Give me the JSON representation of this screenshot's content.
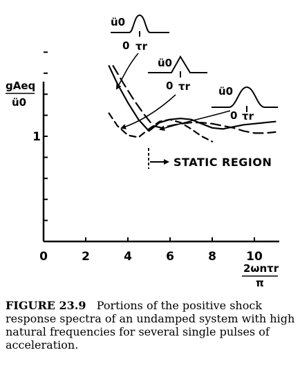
{
  "chart_data": {
    "type": "line",
    "ylabel_num": "gAeq",
    "ylabel_den": "ü0",
    "xlabel_num": "2ωnτr",
    "xlabel_den": "π",
    "xlim": [
      0,
      11
    ],
    "ylim": [
      0,
      1.9
    ],
    "xticks": [
      0,
      2,
      4,
      6,
      8,
      10
    ],
    "ytick_labels": [
      {
        "value": 1,
        "label": "1"
      }
    ],
    "series": [
      {
        "style": "solid",
        "x": [
          3.1,
          3.5,
          4.0,
          4.5,
          5.0,
          5.5,
          6.0,
          6.5,
          7.0,
          7.5,
          8.0,
          8.5,
          9.0,
          9.5,
          10.0,
          10.5,
          11.0
        ],
        "y": [
          1.67,
          1.5,
          1.32,
          1.16,
          1.05,
          1.13,
          1.16,
          1.17,
          1.16,
          1.12,
          1.08,
          1.07,
          1.09,
          1.11,
          1.12,
          1.13,
          1.14
        ]
      },
      {
        "style": "longdash",
        "x": [
          3.3,
          3.8,
          4.3,
          4.8,
          5.2,
          5.6,
          6.0,
          6.5,
          7.0,
          7.5,
          8.0,
          8.5,
          9.0,
          9.5,
          10.0,
          10.5,
          11.0
        ],
        "y": [
          1.67,
          1.5,
          1.34,
          1.2,
          1.1,
          1.08,
          1.1,
          1.12,
          1.13,
          1.13,
          1.12,
          1.1,
          1.08,
          1.05,
          1.03,
          1.03,
          1.04
        ]
      },
      {
        "style": "dash",
        "x": [
          3.1,
          3.5,
          4.0,
          4.5,
          5.0,
          5.5,
          6.0,
          6.5,
          7.0,
          7.5,
          8.0
        ],
        "y": [
          1.22,
          1.1,
          1.01,
          0.99,
          1.07,
          1.14,
          1.16,
          1.13,
          1.07,
          1.0,
          0.95
        ]
      }
    ],
    "annotations": [
      {
        "text": "STATIC REGION",
        "x_start": 5.0
      }
    ]
  },
  "pulses": [
    {
      "amp_label": "ü0",
      "zero_label": "0",
      "tau_label": "τr"
    },
    {
      "amp_label": "ü0",
      "zero_label": "0",
      "tau_label": "τr"
    },
    {
      "amp_label": "ü0",
      "zero_label": "0",
      "tau_label": "τr"
    }
  ],
  "caption": {
    "label": "FIGURE 23.9",
    "text": "Portions of the positive shock response spectra of an undamped system with high natural frequencies for several single pulses of acceleration."
  }
}
